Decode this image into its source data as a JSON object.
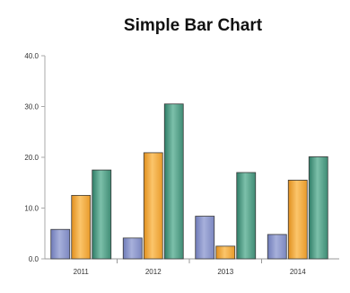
{
  "chart_data": {
    "type": "bar",
    "title": "Simple Bar Chart",
    "xlabel": "",
    "ylabel": "",
    "categories": [
      "2011",
      "2012",
      "2013",
      "2014"
    ],
    "series": [
      {
        "values": [
          5.8,
          4.1,
          8.4,
          4.8
        ],
        "color": "#8e98c9"
      },
      {
        "values": [
          12.5,
          20.9,
          2.5,
          15.5
        ],
        "color": "#f2a840"
      },
      {
        "values": [
          17.5,
          30.5,
          17.0,
          20.1
        ],
        "color": "#4f9b85"
      }
    ],
    "y_ticks": [
      "0.0",
      "10.0",
      "20.0",
      "30.0",
      "40.0"
    ],
    "ylim": [
      0,
      40
    ],
    "grid": false,
    "legend": "none"
  }
}
